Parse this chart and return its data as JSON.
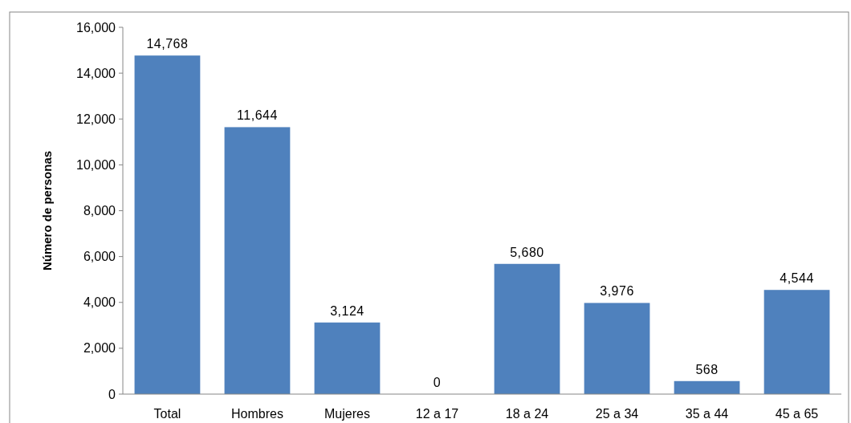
{
  "chart_data": {
    "type": "bar",
    "ylabel": "Número de personas",
    "categories": [
      "Total",
      "Hombres",
      "Mujeres",
      "12 a 17",
      "18 a 24",
      "25 a 34",
      "35 a 44",
      "45 a 65"
    ],
    "values": [
      14768,
      11644,
      3124,
      0,
      5680,
      3976,
      568,
      4544
    ],
    "value_labels": [
      "14,768",
      "11,644",
      "3,124",
      "0",
      "5,680",
      "3,976",
      "568",
      "4,544"
    ],
    "color": "#4f81bd",
    "ylim": [
      0,
      16000
    ],
    "yticks": [
      0,
      {
        "value": 2000,
        "label": "2,000"
      },
      {
        "value": 4000,
        "label": "4,000"
      },
      {
        "value": 6000,
        "label": "6,000"
      },
      {
        "value": 8000,
        "label": "8,000"
      },
      {
        "value": 10000,
        "label": "10,000"
      },
      {
        "value": 12000,
        "label": "12,000"
      },
      {
        "value": 14000,
        "label": "14,000"
      },
      {
        "value": 16000,
        "label": "16,000"
      }
    ],
    "grid": false
  }
}
